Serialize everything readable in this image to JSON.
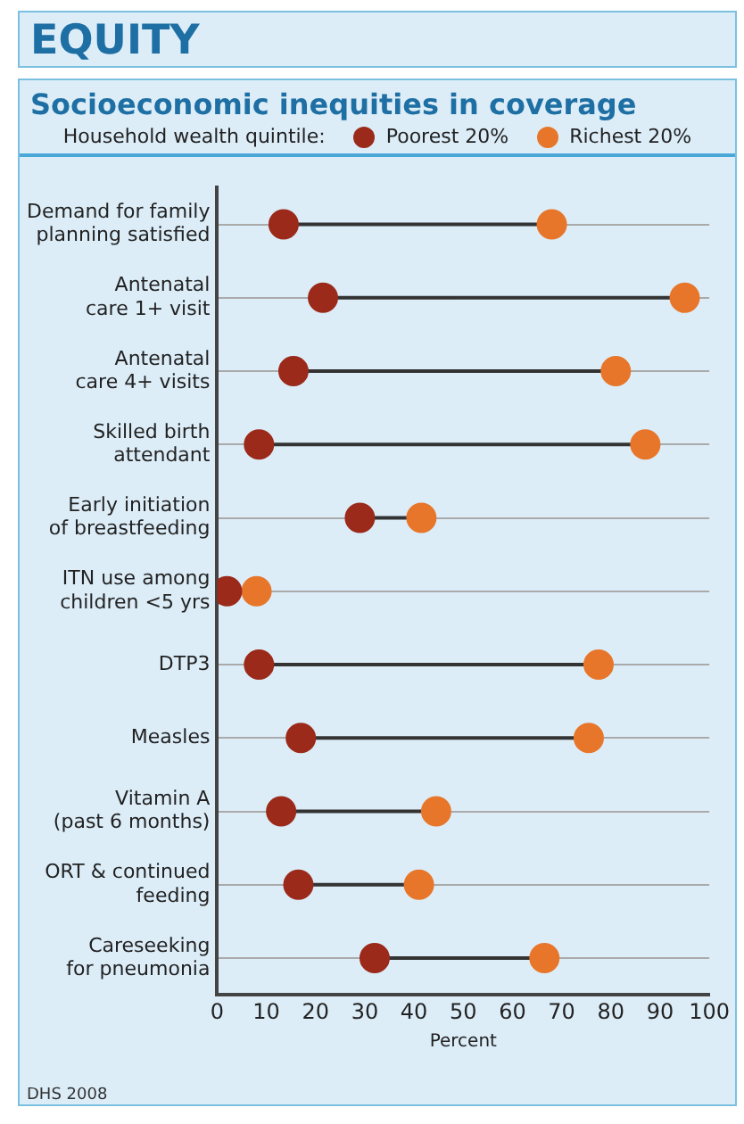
{
  "chart_data": {
    "type": "scatter",
    "orientation": "horizontal",
    "title": "EQUITY",
    "subtitle": "Socioeconomic inequities in coverage",
    "legend_title": "Household wealth quintile:",
    "legend": "top",
    "xlabel": "Percent",
    "marker": "circle",
    "grid": "y",
    "categories": [
      "Demand for family planning satisfied",
      "Antenatal care 1+ visit",
      "Antenatal care 4+ visits",
      "Skilled birth attendant",
      "Early initiation of breastfeeding",
      "ITN use among children <5 yrs",
      "DTP3",
      "Measles",
      "Vitamin A (past 6 months)",
      "ORT & continued feeding",
      "Careseeking for pneumonia"
    ],
    "series": [
      {
        "name": "Poorest 20%",
        "color": "#9b2a1a",
        "values": [
          13.5,
          21.5,
          15.5,
          8.5,
          29,
          2,
          8.5,
          17,
          13,
          16.5,
          32
        ]
      },
      {
        "name": "Richest 20%",
        "color": "#e8762a",
        "values": [
          68,
          95,
          81,
          87,
          41.5,
          8,
          77.5,
          75.5,
          44.5,
          41,
          66.5
        ]
      }
    ],
    "xlim": [
      0,
      100
    ],
    "xticks": [
      0,
      10,
      20,
      30,
      40,
      50,
      60,
      70,
      80,
      90,
      100
    ],
    "annotations": [
      "DHS 2008"
    ]
  }
}
